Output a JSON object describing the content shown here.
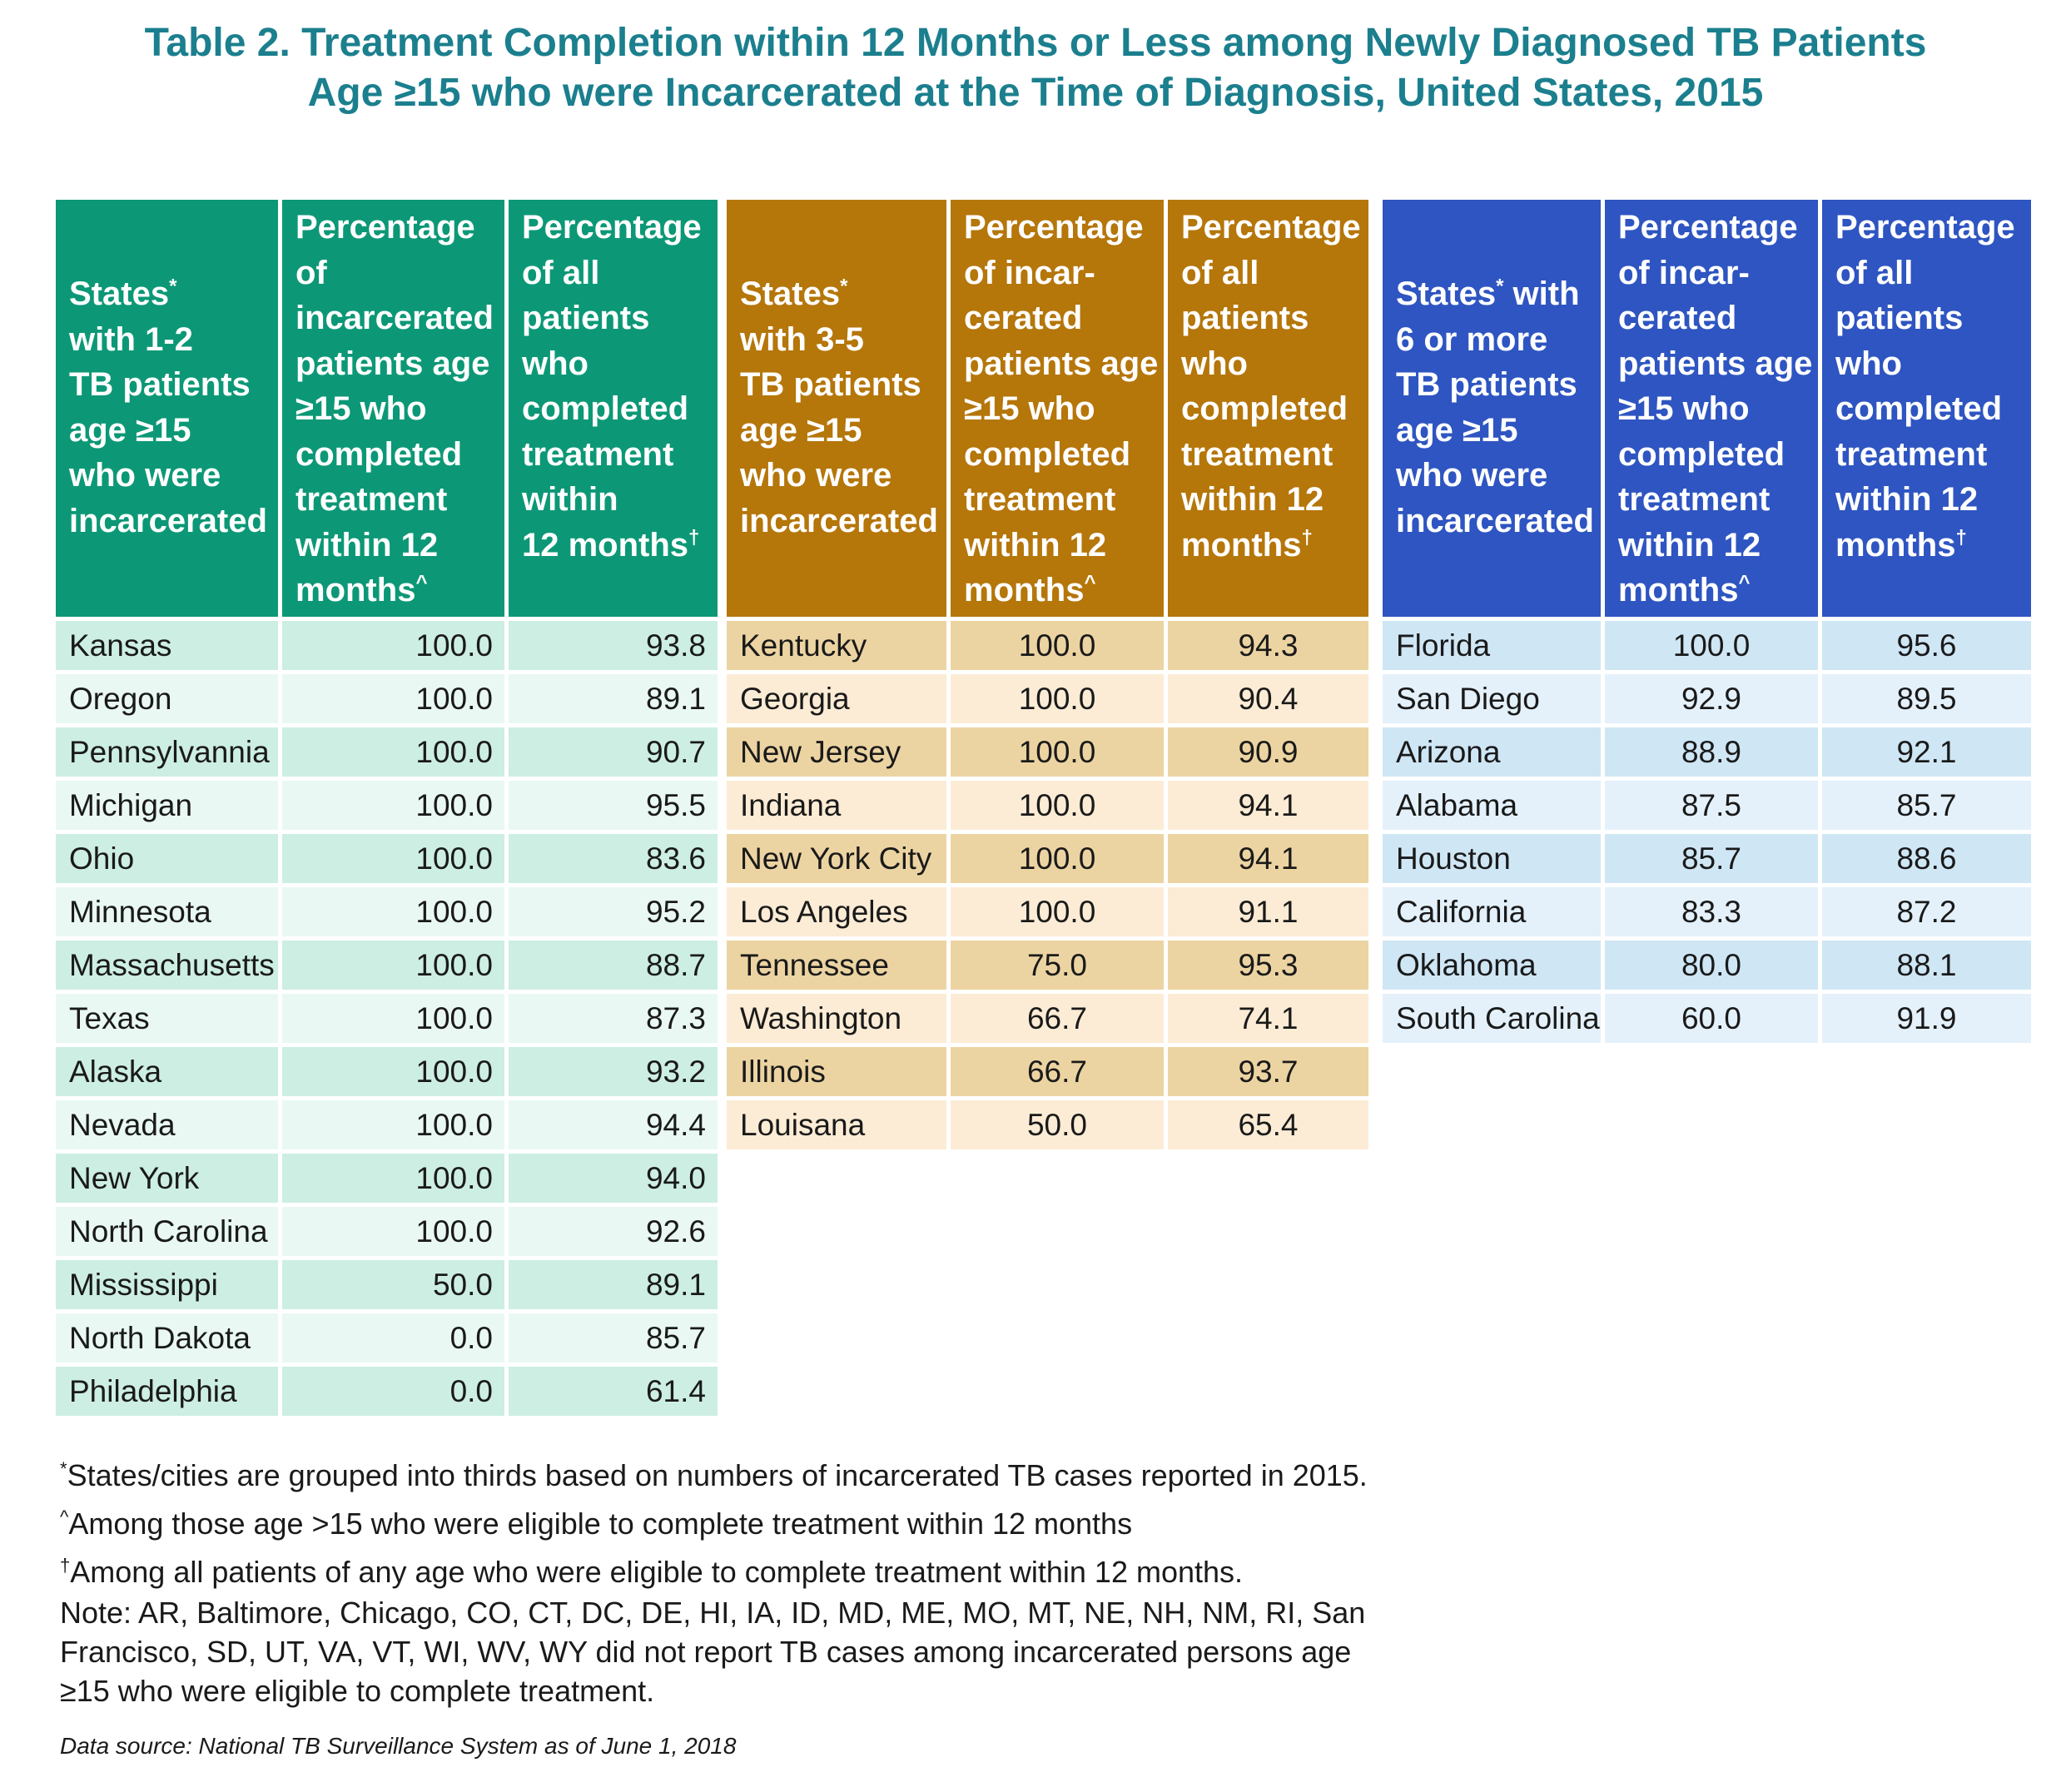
{
  "title": {
    "line1": "Table 2. Treatment Completion within 12 Months or Less among Newly Diagnosed TB Patients",
    "line2": "Age ≥15 who were Incarcerated at the Time of Diagnosis, United States, 2015"
  },
  "group1": {
    "headers": [
      "States*\nwith 1-2\nTB patients\nage ≥15\nwho were\nincarcerated",
      "Percentage\nof\nincarcerated\npatients age\n≥15 who\ncompleted\ntreatment\nwithin 12\nmonths^",
      "Percentage\nof all\npatients\nwho\ncompleted\ntreatment\nwithin\n12 months†"
    ],
    "rows": [
      [
        "Kansas",
        "100.0",
        "93.8"
      ],
      [
        "Oregon",
        "100.0",
        "89.1"
      ],
      [
        "Pennsylvannia",
        "100.0",
        "90.7"
      ],
      [
        "Michigan",
        "100.0",
        "95.5"
      ],
      [
        "Ohio",
        "100.0",
        "83.6"
      ],
      [
        "Minnesota",
        "100.0",
        "95.2"
      ],
      [
        "Massachusetts",
        "100.0",
        "88.7"
      ],
      [
        "Texas",
        "100.0",
        "87.3"
      ],
      [
        "Alaska",
        "100.0",
        "93.2"
      ],
      [
        "Nevada",
        "100.0",
        "94.4"
      ],
      [
        "New York",
        "100.0",
        "94.0"
      ],
      [
        "North Carolina",
        "100.0",
        "92.6"
      ],
      [
        "Mississippi",
        "50.0",
        "89.1"
      ],
      [
        "North Dakota",
        "0.0",
        "85.7"
      ],
      [
        "Philadelphia",
        "0.0",
        "61.4"
      ]
    ]
  },
  "group2": {
    "headers": [
      "States*\nwith 3-5\nTB patients\nage ≥15\nwho were\nincarcerated",
      "Percentage\nof incar-\ncerated\npatients age\n≥15 who\ncompleted\ntreatment\nwithin 12\nmonths^",
      "Percentage\nof all\npatients\nwho\ncompleted\ntreatment\nwithin 12\nmonths†"
    ],
    "rows": [
      [
        "Kentucky",
        "100.0",
        "94.3"
      ],
      [
        "Georgia",
        "100.0",
        "90.4"
      ],
      [
        "New Jersey",
        "100.0",
        "90.9"
      ],
      [
        "Indiana",
        "100.0",
        "94.1"
      ],
      [
        "New York City",
        "100.0",
        "94.1"
      ],
      [
        "Los Angeles",
        "100.0",
        "91.1"
      ],
      [
        "Tennessee",
        "75.0",
        "95.3"
      ],
      [
        "Washington",
        "66.7",
        "74.1"
      ],
      [
        "Illinois",
        "66.7",
        "93.7"
      ],
      [
        "Louisana",
        "50.0",
        "65.4"
      ]
    ]
  },
  "group3": {
    "headers": [
      "States*  with\n6 or more\nTB patients\nage ≥15\nwho were\nincarcerated",
      "Percentage\nof incar-\ncerated\npatients age\n≥15 who\ncompleted\ntreatment\nwithin 12\nmonths^",
      "Percentage\nof all\npatients\nwho\ncompleted\ntreatment\nwithin 12\nmonths†"
    ],
    "rows": [
      [
        "Florida",
        "100.0",
        "95.6"
      ],
      [
        "San Diego",
        "92.9",
        "89.5"
      ],
      [
        "Arizona",
        "88.9",
        "92.1"
      ],
      [
        "Alabama",
        "87.5",
        "85.7"
      ],
      [
        "Houston",
        "85.7",
        "88.6"
      ],
      [
        "California",
        "83.3",
        "87.2"
      ],
      [
        "Oklahoma",
        "80.0",
        "88.1"
      ],
      [
        "South Carolina",
        "60.0",
        "91.9"
      ]
    ]
  },
  "notes": {
    "asterisk_mark": "*",
    "asterisk": "States/cities are grouped into thirds based on numbers of incarcerated TB cases reported in 2015.",
    "caret_mark": "^",
    "caret": "Among those age >15 who were eligible to complete treatment within 12 months",
    "dagger_mark": "†",
    "dagger": "Among all patients of any age who were eligible to complete treatment within 12 months.",
    "note": "Note: AR, Baltimore, Chicago, CO, CT, DC, DE, HI, IA, ID, MD, ME, MO, MT, NE, NH, NM, RI, San Francisco, SD, UT, VA, VT, WI, WV, WY did not report TB cases among incarcerated persons age ≥15 who were eligible to complete treatment.",
    "source": "Data source: National TB Surveillance System as of June 1, 2018"
  },
  "colors": {
    "title": "#1b7f8e",
    "group1_header": "#0c9876",
    "group1_row_a": "#cdeee3",
    "group1_row_b": "#e9f8f3",
    "group2_header": "#b5760a",
    "group2_row_a": "#ecd4a2",
    "group2_row_b": "#fcecd5",
    "group3_header": "#2e55c1",
    "group3_row_a": "#cfe6f5",
    "group3_row_b": "#e4f1fb"
  }
}
